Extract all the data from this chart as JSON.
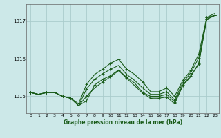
{
  "bg_color": "#cce8e8",
  "grid_color": "#aacccc",
  "line_color": "#1a5c1a",
  "xlabel": "Graphe pression niveau de la mer (hPa)",
  "xlim": [
    -0.5,
    23.5
  ],
  "ylim": [
    1014.55,
    1017.45
  ],
  "yticks": [
    1015,
    1016,
    1017
  ],
  "xticks": [
    0,
    1,
    2,
    3,
    4,
    5,
    6,
    7,
    8,
    9,
    10,
    11,
    12,
    13,
    14,
    15,
    16,
    17,
    18,
    19,
    20,
    21,
    22,
    23
  ],
  "series": [
    [
      1015.1,
      1015.05,
      1015.1,
      1015.1,
      1015.0,
      1014.95,
      1014.75,
      1014.88,
      1015.3,
      1015.45,
      1015.55,
      1015.7,
      1015.5,
      1015.35,
      1015.1,
      1015.0,
      1015.0,
      1015.05,
      1014.85,
      1015.3,
      1015.55,
      1015.85,
      1017.1,
      1017.15
    ],
    [
      1015.1,
      1015.05,
      1015.1,
      1015.1,
      1015.0,
      1014.95,
      1014.75,
      1015.2,
      1015.45,
      1015.6,
      1015.72,
      1015.82,
      1015.58,
      1015.42,
      1015.22,
      1015.05,
      1015.05,
      1015.12,
      1014.9,
      1015.36,
      1015.62,
      1016.02,
      1017.05,
      1017.15
    ],
    [
      1015.1,
      1015.05,
      1015.1,
      1015.1,
      1015.0,
      1014.95,
      1014.8,
      1015.32,
      1015.58,
      1015.72,
      1015.88,
      1015.98,
      1015.72,
      1015.58,
      1015.38,
      1015.12,
      1015.12,
      1015.22,
      1015.0,
      1015.42,
      1015.68,
      1016.12,
      1017.1,
      1017.2
    ],
    [
      1015.1,
      1015.05,
      1015.1,
      1015.1,
      1015.0,
      1014.95,
      1014.75,
      1015.0,
      1015.22,
      1015.38,
      1015.52,
      1015.68,
      1015.48,
      1015.28,
      1015.08,
      1014.95,
      1014.95,
      1014.98,
      1014.8,
      1015.28,
      1015.52,
      1015.88,
      1017.05,
      1017.15
    ]
  ]
}
